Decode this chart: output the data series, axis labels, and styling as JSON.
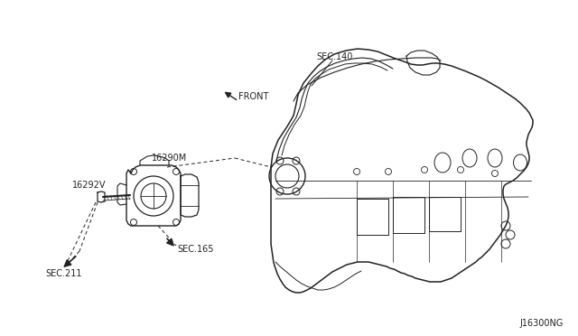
{
  "background_color": "#ffffff",
  "fig_width": 6.4,
  "fig_height": 3.72,
  "dpi": 100,
  "labels": {
    "front": "FRONT",
    "sec140": "SEC.140",
    "sec165": "SEC.165",
    "sec211": "SEC.211",
    "part1": "16290M",
    "part2": "16292V"
  },
  "diagram_code": "J16300NG",
  "text_color": "#222222",
  "line_color": "#222222"
}
